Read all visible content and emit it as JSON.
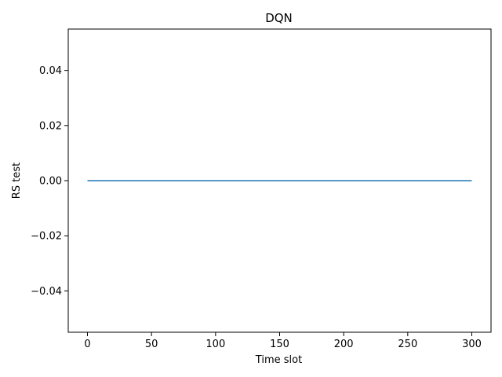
{
  "chart_data": {
    "type": "line",
    "title": "DQN",
    "xlabel": "Time slot",
    "ylabel": "RS test",
    "xlim": [
      -15,
      315
    ],
    "ylim": [
      -0.055,
      0.055
    ],
    "x_ticks": [
      0,
      50,
      100,
      150,
      200,
      250,
      300
    ],
    "x_tick_labels": [
      "0",
      "50",
      "100",
      "150",
      "200",
      "250",
      "300"
    ],
    "y_ticks": [
      -0.04,
      -0.02,
      0.0,
      0.02,
      0.04
    ],
    "y_tick_labels": [
      "−0.04",
      "−0.02",
      "0.00",
      "0.02",
      "0.04"
    ],
    "grid": false,
    "series": [
      {
        "x": [
          0,
          300
        ],
        "y": [
          0,
          0
        ],
        "color": "#1f77b4"
      }
    ]
  }
}
